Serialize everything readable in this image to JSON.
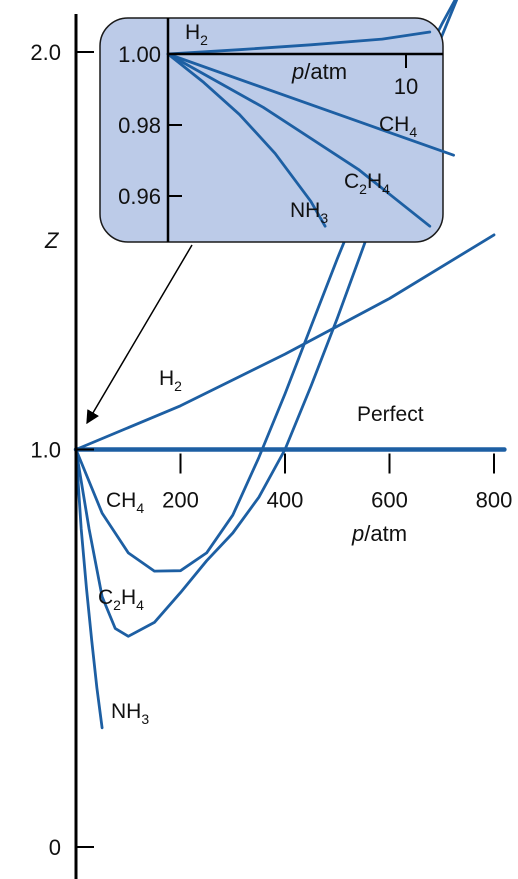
{
  "chart_data": [
    {
      "id": "main",
      "type": "line",
      "xlabel_italic": "p",
      "xlabel_rest": "/atm",
      "ylabel": "Z",
      "xlim": [
        0,
        840
      ],
      "ylim": [
        0,
        2.05
      ],
      "x_ticks": [
        200,
        400,
        600,
        800
      ],
      "x_tick_labels": [
        "200",
        "400",
        "600",
        "800"
      ],
      "y_ticks": [
        0,
        1.0,
        2.0
      ],
      "y_tick_labels": [
        "0",
        "1.0",
        "2.0"
      ],
      "colors": {
        "curve": "#1d5fa3",
        "axis": "#000000",
        "inset_bg": "#bccbe8"
      },
      "series": [
        {
          "name": "Perfect",
          "x": [
            0,
            820
          ],
          "y": [
            1.0,
            1.0
          ]
        },
        {
          "name": "H2",
          "label_main": "H",
          "label_sub": "2",
          "x": [
            0,
            200,
            400,
            600,
            800
          ],
          "y": [
            1.0,
            1.11,
            1.24,
            1.38,
            1.54
          ]
        },
        {
          "name": "CH4",
          "label_main": "CH",
          "label_sub": "4",
          "x": [
            0,
            50,
            100,
            150,
            200,
            250,
            300,
            350,
            400,
            450,
            500,
            550,
            600,
            650,
            700,
            750,
            800
          ],
          "y": [
            1.0,
            0.84,
            0.74,
            0.694,
            0.695,
            0.74,
            0.835,
            0.98,
            1.14,
            1.31,
            1.48,
            1.64,
            1.79,
            1.94,
            2.07,
            2.19,
            2.3
          ]
        },
        {
          "name": "C2H4",
          "label_main": "C",
          "label_sub1": "2",
          "label_mid": "H",
          "label_sub": "4",
          "x": [
            0,
            25,
            50,
            75,
            100,
            150,
            200,
            250,
            300,
            350,
            400,
            450,
            500,
            550,
            600,
            650,
            700,
            750,
            800
          ],
          "y": [
            1.0,
            0.8,
            0.63,
            0.55,
            0.53,
            0.565,
            0.64,
            0.72,
            0.79,
            0.88,
            1.0,
            1.16,
            1.33,
            1.51,
            1.69,
            1.87,
            2.04,
            2.2,
            2.36
          ]
        },
        {
          "name": "NH3",
          "label_main": "NH",
          "label_sub": "3",
          "x": [
            0,
            5,
            10,
            20,
            30,
            40,
            50
          ],
          "y": [
            1.0,
            0.9,
            0.8,
            0.65,
            0.52,
            0.4,
            0.3
          ]
        }
      ]
    },
    {
      "id": "inset",
      "type": "line",
      "xlabel_italic": "p",
      "xlabel_rest": "/atm",
      "xlim": [
        0,
        12
      ],
      "ylim": [
        0.948,
        1.008
      ],
      "x_ticks": [
        10
      ],
      "x_tick_labels": [
        "10"
      ],
      "y_ticks": [
        1.0,
        0.98,
        0.96
      ],
      "y_tick_labels": [
        "1.00",
        "0.98",
        "0.96"
      ],
      "series": [
        {
          "name": "H2",
          "label_main": "H",
          "label_sub": "2",
          "x": [
            0,
            3,
            6,
            9,
            11
          ],
          "y": [
            1.0,
            1.0012,
            1.0026,
            1.0042,
            1.0062
          ]
        },
        {
          "name": "CH4",
          "label_main": "CH",
          "label_sub": "4",
          "x": [
            0,
            12
          ],
          "y": [
            1.0,
            0.9715
          ]
        },
        {
          "name": "C2H4",
          "label_main": "C",
          "label_sub1": "2",
          "label_mid": "H",
          "label_sub": "4",
          "x": [
            0,
            4,
            8,
            11
          ],
          "y": [
            1.0,
            0.985,
            0.9675,
            0.9515
          ]
        },
        {
          "name": "NH3",
          "label_main": "NH",
          "label_sub": "3",
          "x": [
            0,
            1.5,
            3,
            4.5,
            6,
            6.6
          ],
          "y": [
            1.0,
            0.992,
            0.983,
            0.972,
            0.9585,
            0.9515
          ]
        }
      ]
    }
  ]
}
